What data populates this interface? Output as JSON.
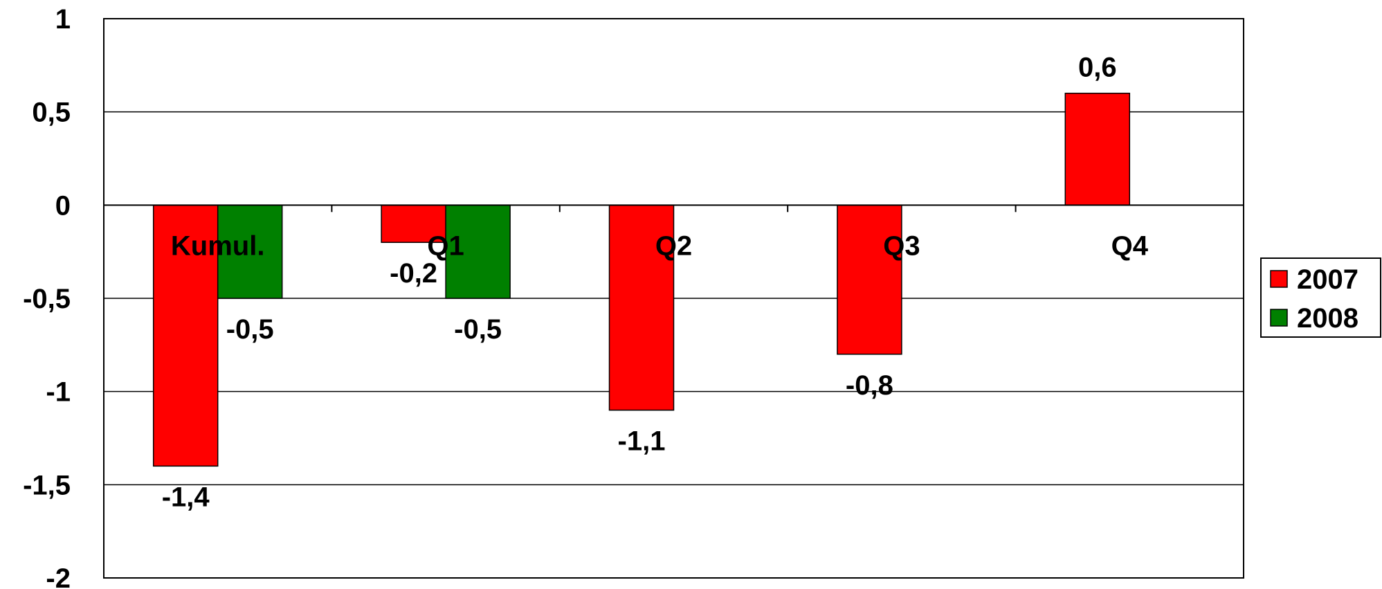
{
  "chart_data": {
    "type": "bar",
    "categories": [
      "Kumul.",
      "Q1",
      "Q2",
      "Q3",
      "Q4"
    ],
    "series": [
      {
        "name": "2007",
        "values": [
          -1.4,
          -0.2,
          -1.1,
          -0.8,
          0.6
        ],
        "labels": [
          "-1,4",
          "-0,2",
          "-1,1",
          "-0,8",
          "0,6"
        ],
        "color": "#ff0000"
      },
      {
        "name": "2008",
        "values": [
          -0.5,
          -0.5,
          null,
          null,
          null
        ],
        "labels": [
          "-0,5",
          "-0,5",
          "",
          "",
          ""
        ],
        "color": "#008000"
      }
    ],
    "ylim": [
      -2,
      1
    ],
    "yticks": [
      1,
      0.5,
      0,
      -0.5,
      -1,
      -1.5,
      -2
    ],
    "ytick_labels": [
      "1",
      "0,5",
      "0",
      "-0,5",
      "-1",
      "-1,5",
      "-2"
    ],
    "grid": true,
    "legend_position": "right"
  }
}
